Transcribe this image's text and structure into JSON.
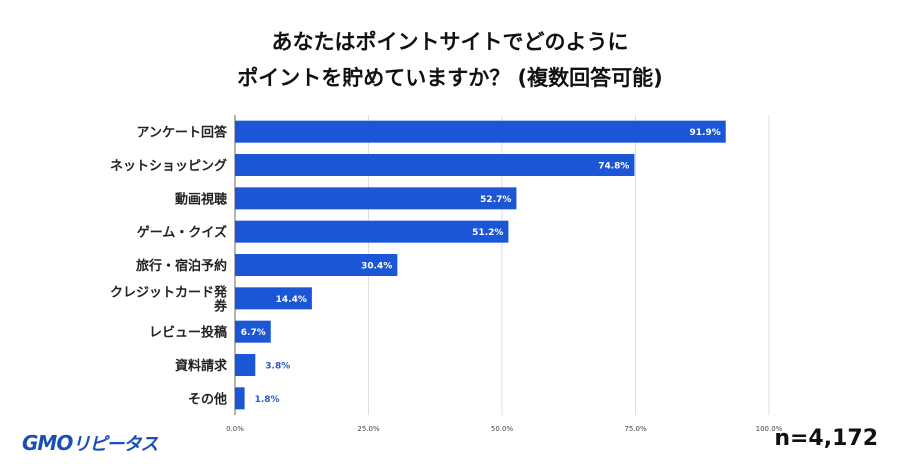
{
  "chart_data": {
    "type": "bar",
    "orientation": "horizontal",
    "title": [
      "あなたはポイントサイトでどのように",
      "ポイントを貯めていますか？ (複数回答可能)"
    ],
    "categories": [
      "アンケート回答",
      "ネットショッピング",
      "動画視聴",
      "ゲーム・クイズ",
      "旅行・宿泊予約",
      "クレジットカード発券",
      "レビュー投稿",
      "資料請求",
      "その他"
    ],
    "values": [
      91.9,
      74.8,
      52.7,
      51.2,
      30.4,
      14.4,
      6.7,
      3.8,
      1.8
    ],
    "data_labels": [
      "91.9%",
      "74.8%",
      "52.7%",
      "51.2%",
      "30.4%",
      "14.4%",
      "6.7%",
      "3.8%",
      "1.8%"
    ],
    "xlim": [
      0,
      100
    ],
    "xticks": [
      0,
      25,
      50,
      75,
      100
    ],
    "xtick_labels": [
      "0.0%",
      "25.0%",
      "50.0%",
      "75.0%",
      "100.0%"
    ],
    "grid": true,
    "bar_color": "#1a56d6"
  },
  "footer": {
    "logo": "GMOリピータス",
    "sample_size": "n=4,172"
  }
}
